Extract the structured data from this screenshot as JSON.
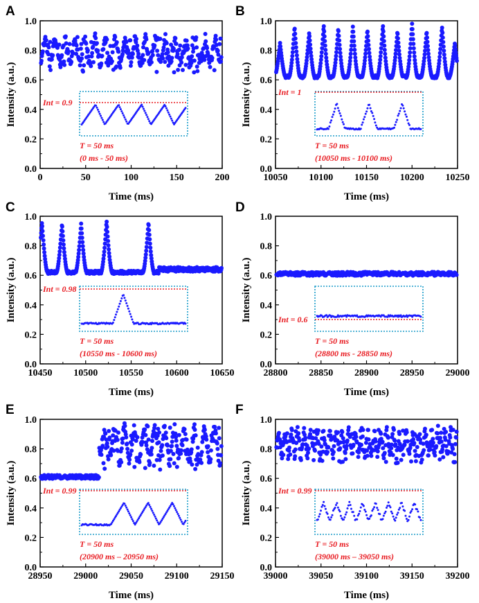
{
  "chart_data": [
    {
      "panel": "A",
      "type": "scatter",
      "xlabel": "Time (ms)",
      "ylabel": "Intensity (a.u.)",
      "xlim": [
        0,
        200
      ],
      "ylim": [
        0,
        1.0
      ],
      "xticks": [
        "0",
        "50",
        "100",
        "150",
        "200"
      ],
      "yticks": [
        "0.0",
        "0.2",
        "0.4",
        "0.6",
        "0.8",
        "1.0"
      ],
      "series": [
        {
          "name": "intensity",
          "pattern": "band",
          "low": 0.65,
          "high": 0.89,
          "period_ms": 11
        }
      ],
      "inset": {
        "int_label": "Int = 0.9",
        "t_label": "T = 50 ms",
        "range_label": "(0 ms - 50 ms)",
        "shape": "waves",
        "cycles": 4.5
      }
    },
    {
      "panel": "B",
      "type": "scatter",
      "xlabel": "Time (ms)",
      "ylabel": "Intensity (a.u.)",
      "xlim": [
        10050,
        10250
      ],
      "ylim": [
        0,
        1.0
      ],
      "xticks": [
        "10050",
        "10100",
        "10150",
        "10200",
        "10250"
      ],
      "yticks": [
        "0.0",
        "0.2",
        "0.4",
        "0.6",
        "0.8",
        "1.0"
      ],
      "series": [
        {
          "name": "intensity",
          "pattern": "peaks",
          "baseline": 0.62,
          "peaks": [
            {
              "t": 10055,
              "v": 0.85
            },
            {
              "t": 10071,
              "v": 0.96
            },
            {
              "t": 10087,
              "v": 0.92
            },
            {
              "t": 10103,
              "v": 0.97
            },
            {
              "t": 10119,
              "v": 0.95
            },
            {
              "t": 10135,
              "v": 0.96
            },
            {
              "t": 10151,
              "v": 0.94
            },
            {
              "t": 10168,
              "v": 0.97
            },
            {
              "t": 10184,
              "v": 0.93
            },
            {
              "t": 10200,
              "v": 0.98
            },
            {
              "t": 10216,
              "v": 0.93
            },
            {
              "t": 10233,
              "v": 0.96
            },
            {
              "t": 10247,
              "v": 0.85
            }
          ]
        }
      ],
      "inset": {
        "int_label": "Int = 1",
        "t_label": "T = 50 ms",
        "range_label": "(10050 ms - 10100 ms)",
        "shape": "peaks",
        "peaks": [
          0.19,
          0.5,
          0.82
        ]
      }
    },
    {
      "panel": "C",
      "type": "scatter",
      "xlabel": "Time (ms)",
      "ylabel": "Intensity (a.u.)",
      "xlim": [
        10450,
        10650
      ],
      "ylim": [
        0,
        1.0
      ],
      "xticks": [
        "10450",
        "10500",
        "10550",
        "10600",
        "10650"
      ],
      "yticks": [
        "0.0",
        "0.2",
        "0.4",
        "0.6",
        "0.8",
        "1.0"
      ],
      "series": [
        {
          "name": "intensity",
          "pattern": "peaks",
          "baseline": 0.62,
          "tail_start": 10580,
          "tail_level": 0.64,
          "peaks": [
            {
              "t": 10452,
              "v": 0.96
            },
            {
              "t": 10474,
              "v": 0.95
            },
            {
              "t": 10495,
              "v": 0.95
            },
            {
              "t": 10523,
              "v": 0.97
            },
            {
              "t": 10569,
              "v": 0.96
            }
          ]
        }
      ],
      "inset": {
        "int_label": "Int = 0.98",
        "t_label": "T = 50 ms",
        "range_label": "(10550 ms - 10600 ms)",
        "shape": "single",
        "peaks": [
          0.4
        ]
      }
    },
    {
      "panel": "D",
      "type": "scatter",
      "xlabel": "Time (ms)",
      "ylabel": "Intensity (a.u.)",
      "xlim": [
        28800,
        29000
      ],
      "ylim": [
        0,
        1.0
      ],
      "xticks": [
        "28800",
        "28850",
        "28900",
        "28950",
        "29000"
      ],
      "yticks": [
        "0.0",
        "0.2",
        "0.4",
        "0.6",
        "0.8",
        "1.0"
      ],
      "series": [
        {
          "name": "intensity",
          "pattern": "flat",
          "level": 0.61
        }
      ],
      "inset": {
        "int_label": "Int = 0.6",
        "t_label": "T = 50 ms",
        "range_label": "(28800 ms - 28850 ms)",
        "shape": "flat"
      }
    },
    {
      "panel": "E",
      "type": "scatter",
      "xlabel": "Time (ms)",
      "ylabel": "Intensity (a.u.)",
      "xlim": [
        28950,
        29150
      ],
      "ylim": [
        0,
        1.0
      ],
      "xticks": [
        "28950",
        "29000",
        "29050",
        "29100",
        "29150"
      ],
      "yticks": [
        "0.0",
        "0.2",
        "0.4",
        "0.6",
        "0.8",
        "1.0"
      ],
      "series": [
        {
          "name": "intensity",
          "pattern": "step",
          "step_at": 29015,
          "flat_level": 0.61,
          "low": 0.65,
          "high": 0.96,
          "period_ms": 11
        }
      ],
      "inset": {
        "int_label": "Int = 0.99",
        "t_label": "T = 50 ms",
        "range_label": "(20900 ms – 20950 ms)",
        "shape": "step"
      }
    },
    {
      "panel": "F",
      "type": "scatter",
      "xlabel": "Time (ms)",
      "ylabel": "Intensity (a.u.)",
      "xlim": [
        39000,
        39200
      ],
      "ylim": [
        0,
        1.0
      ],
      "xticks": [
        "39000",
        "39050",
        "39100",
        "39150",
        "39200"
      ],
      "yticks": [
        "0.0",
        "0.2",
        "0.4",
        "0.6",
        "0.8",
        "1.0"
      ],
      "series": [
        {
          "name": "intensity",
          "pattern": "band",
          "low": 0.7,
          "high": 0.93,
          "period_ms": 7
        }
      ],
      "inset": {
        "int_label": "Int = 0.99",
        "t_label": "T = 50 ms",
        "range_label": "(39000 ms – 39050 ms)",
        "shape": "fast"
      }
    }
  ]
}
